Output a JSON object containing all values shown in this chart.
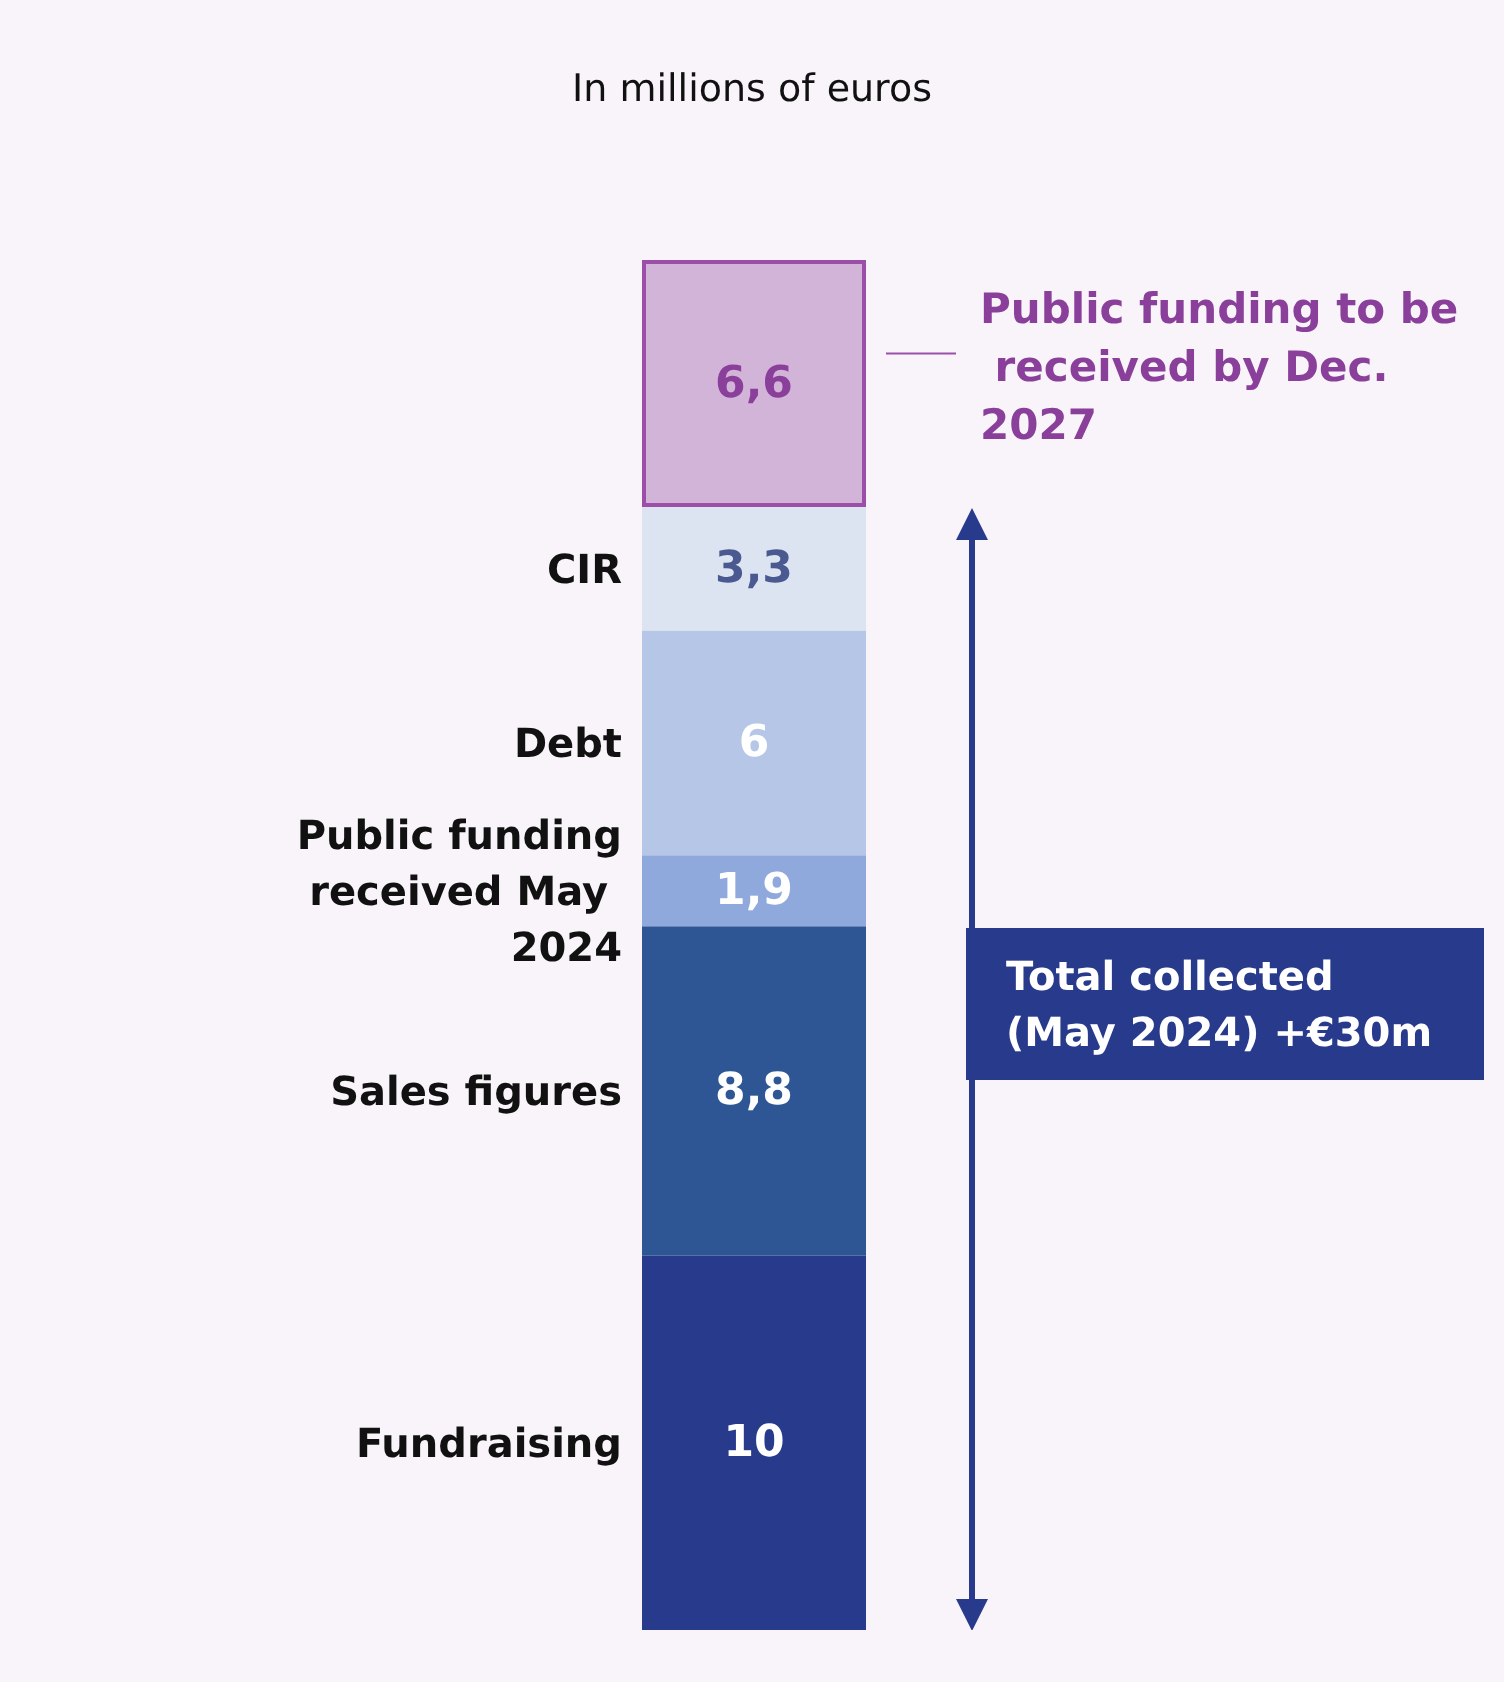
{
  "chart_data": {
    "type": "bar",
    "title": "In millions of euros",
    "stacked": true,
    "categories": [
      null
    ],
    "series": [
      {
        "name": "Fundraising",
        "color": "#283a8c",
        "values": [
          10
        ],
        "value_labels": [
          "10"
        ]
      },
      {
        "name": "Sales figures",
        "color": "#2e5694",
        "values": [
          8.8
        ],
        "value_labels": [
          "8,8"
        ]
      },
      {
        "name": "Public funding received May 2024",
        "color": "#8fa9dc",
        "values": [
          1.9
        ],
        "value_labels": [
          "1,9"
        ]
      },
      {
        "name": "Debt",
        "color": "#b5c6e6",
        "values": [
          6
        ],
        "value_labels": [
          "6"
        ]
      },
      {
        "name": "CIR",
        "color": "#dce3f1",
        "values": [
          3.3
        ],
        "value_labels": [
          "3,3"
        ]
      },
      {
        "name": "Public funding to be received by Dec. 2027",
        "color": "#d2b4d9",
        "values": [
          6.6
        ],
        "value_labels": [
          "6,6"
        ]
      }
    ],
    "annotations": [
      "Total collected (May 2024) +€30m"
    ]
  }
}
